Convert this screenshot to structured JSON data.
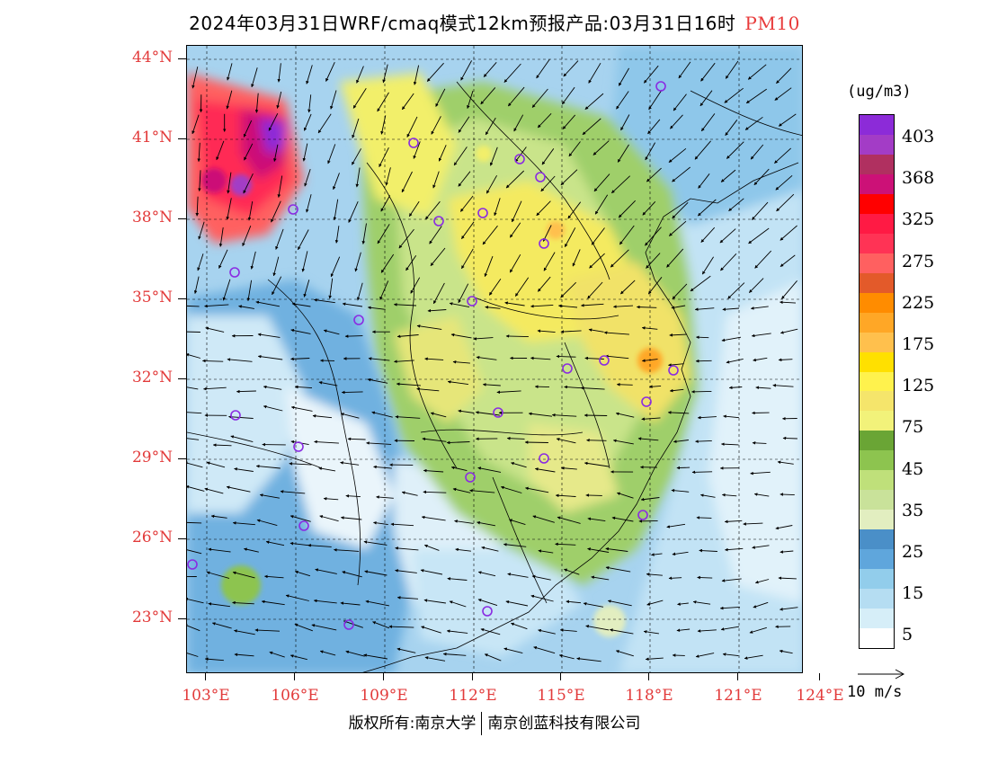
{
  "header": {
    "title": "2024年03月31日WRF/cmaq模式12km预报产品:03月31日16时",
    "pollutant": "PM10"
  },
  "axes": {
    "lat_labels": [
      "44°N",
      "41°N",
      "38°N",
      "35°N",
      "32°N",
      "29°N",
      "26°N",
      "23°N"
    ],
    "lon_labels": [
      "103°E",
      "106°E",
      "109°E",
      "112°E",
      "115°E",
      "118°E",
      "121°E",
      "124°E"
    ]
  },
  "legend": {
    "unit": "(ug/m3)",
    "labels": [
      "403",
      "368",
      "325",
      "275",
      "225",
      "175",
      "125",
      "75",
      "45",
      "35",
      "25",
      "15",
      "5"
    ],
    "colors": [
      "#8c2bd8",
      "#a33cc6",
      "#b03060",
      "#cc1177",
      "#ff0000",
      "#ff1a44",
      "#ff3355",
      "#ff6060",
      "#e35a2a",
      "#ff8c00",
      "#ffa726",
      "#ffc04d",
      "#ffe000",
      "#fff24d",
      "#f5e56b",
      "#f2f27a",
      "#6aa535",
      "#8dc44f",
      "#bfe07a",
      "#c9e29a",
      "#e2eec0",
      "#4a8fc8",
      "#5fa6dc",
      "#92cdeb",
      "#b5ddf2",
      "#d6eef8",
      "#ffffff"
    ]
  },
  "wind_reference": {
    "label": "10 m/s"
  },
  "footer": {
    "left": "版权所有:南京大学",
    "right": "南京创蓝科技有限公司"
  },
  "colors": {
    "axis_label": "#e23a3a",
    "pollutant_label": "#e83a3a",
    "city_marker": "#8a2be2"
  },
  "icons": {
    "city_marker": "purple-circle-icon",
    "wind_vector": "arrow-icon"
  }
}
